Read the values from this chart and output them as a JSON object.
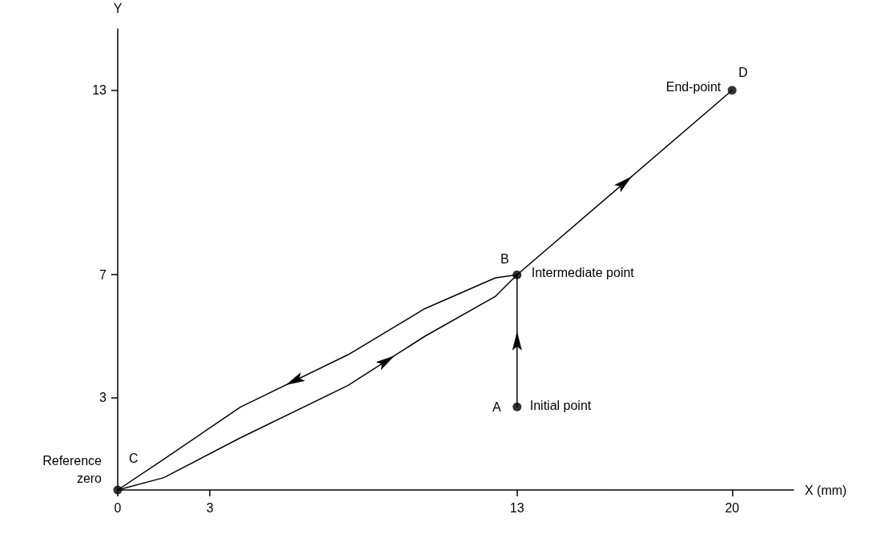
{
  "chart_data": {
    "type": "line",
    "xlabel": "X (mm)",
    "ylabel": "Y",
    "xlim": [
      0,
      22
    ],
    "ylim": [
      0,
      15
    ],
    "xticks": [
      0,
      3,
      13,
      20
    ],
    "yticks": [
      3,
      7,
      13
    ],
    "marker": "none",
    "series": [
      {
        "color": "#000000",
        "x": [
          13,
          13
        ],
        "values": [
          2.7,
          7
        ]
      },
      {
        "color": "#000000",
        "x": [
          13,
          12.3,
          10,
          7.5,
          4,
          1.5,
          0
        ],
        "values": [
          7,
          6.9,
          5.9,
          4.4,
          2.7,
          1.0,
          0
        ]
      },
      {
        "color": "#000000",
        "x": [
          0,
          1.5,
          4,
          7.5,
          10,
          12.3,
          13
        ],
        "values": [
          0,
          0.4,
          1.7,
          3.4,
          5.0,
          6.3,
          7
        ]
      },
      {
        "color": "#000000",
        "x": [
          13,
          20
        ],
        "values": [
          7,
          13
        ]
      },
      {
        "type": "scatter",
        "marker": "circle",
        "color": "#000000",
        "x": [
          13,
          13,
          0,
          20
        ],
        "values": [
          2.7,
          7,
          0,
          13
        ]
      }
    ],
    "annotations": [
      {
        "text": "A",
        "x": 13,
        "y": 2.7
      },
      {
        "text": "Initial point",
        "x": 13,
        "y": 2.7
      },
      {
        "text": "B",
        "x": 13,
        "y": 7
      },
      {
        "text": "Intermediate point",
        "x": 13,
        "y": 7
      },
      {
        "text": "C",
        "x": 0,
        "y": 0
      },
      {
        "text": "Reference zero",
        "x": 0,
        "y": 0
      },
      {
        "text": "D",
        "x": 20,
        "y": 13
      },
      {
        "text": "End-point",
        "x": 20,
        "y": 13
      }
    ]
  }
}
